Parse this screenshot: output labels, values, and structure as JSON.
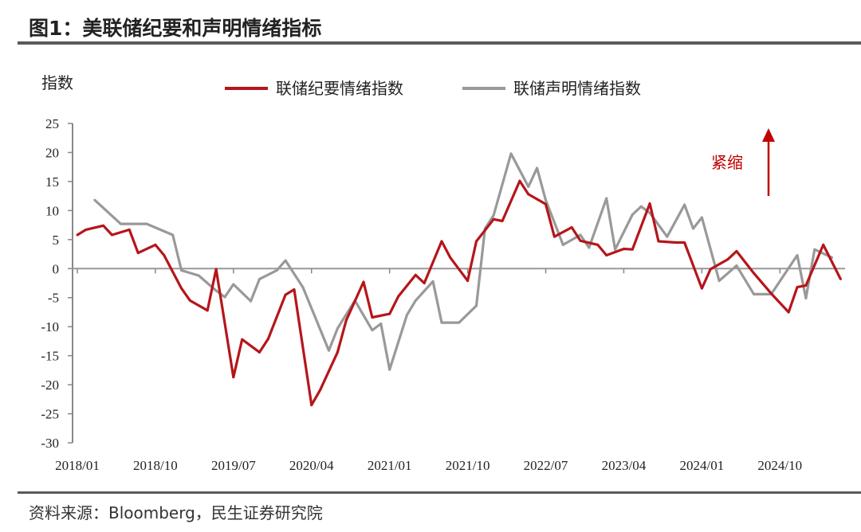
{
  "title": "图1：美联储纪要和声明情绪指标",
  "source": "资料来源：Bloomberg，民生证券研究院",
  "chart_data": {
    "type": "line",
    "ylabel": "指数",
    "ylim": [
      -30,
      25
    ],
    "yticks": [
      25,
      20,
      15,
      10,
      5,
      0,
      -5,
      -10,
      -15,
      -20,
      -25,
      -30
    ],
    "xticks": [
      "2018/01",
      "2018/10",
      "2019/07",
      "2020/04",
      "2021/01",
      "2021/10",
      "2022/07",
      "2023/04",
      "2024/01",
      "2024/10"
    ],
    "legend_position": "top",
    "grid": false,
    "annotation": {
      "text": "紧缩",
      "color": "#c00000",
      "arrow": "up"
    },
    "series": [
      {
        "name": "联储纪要情绪指数",
        "color": "#b5161b",
        "x": [
          "2018-01",
          "2018-02",
          "2018-04",
          "2018-05",
          "2018-07",
          "2018-08",
          "2018-10",
          "2018-11",
          "2019-01",
          "2019-02",
          "2019-04",
          "2019-05",
          "2019-07",
          "2019-08",
          "2019-10",
          "2019-11",
          "2020-01",
          "2020-02",
          "2020-04",
          "2020-05",
          "2020-07",
          "2020-08",
          "2020-10",
          "2020-11",
          "2021-01",
          "2021-02",
          "2021-04",
          "2021-05",
          "2021-07",
          "2021-08",
          "2021-10",
          "2021-11",
          "2022-01",
          "2022-02",
          "2022-04",
          "2022-05",
          "2022-07",
          "2022-08",
          "2022-10",
          "2022-11",
          "2023-01",
          "2023-02",
          "2023-04",
          "2023-05",
          "2023-07",
          "2023-08",
          "2023-10",
          "2023-11",
          "2024-01",
          "2024-02",
          "2024-04",
          "2024-05",
          "2024-07",
          "2024-09",
          "2024-11",
          "2024-12",
          "2025-01",
          "2025-03",
          "2025-05"
        ],
        "y": [
          5.8,
          6.7,
          7.4,
          5.8,
          6.7,
          2.7,
          4.1,
          2.3,
          -3.4,
          -5.5,
          -7.2,
          -0.1,
          -18.7,
          -12.2,
          -14.4,
          -12.1,
          -4.5,
          -3.6,
          -23.5,
          -20.9,
          -14.4,
          -8.9,
          -2.3,
          -8.4,
          -7.8,
          -4.8,
          -1.1,
          -2.5,
          4.7,
          1.9,
          -2.1,
          4.7,
          8.5,
          8.2,
          15.1,
          12.8,
          11.1,
          5.5,
          7.1,
          4.8,
          4.1,
          2.3,
          3.4,
          3.3,
          11.2,
          4.7,
          4.5,
          4.5,
          -3.4,
          -0.1,
          1.6,
          3.0,
          -0.8,
          -4.3,
          -7.5,
          -3.2,
          -2.9,
          4.1,
          -1.8
        ]
      },
      {
        "name": "联储声明情绪指数",
        "color": "#999999",
        "x": [
          "2018-03",
          "2018-06",
          "2018-09",
          "2018-12",
          "2019-01",
          "2019-03",
          "2019-05",
          "2019-06",
          "2019-07",
          "2019-09",
          "2019-10",
          "2019-12",
          "2020-01",
          "2020-03",
          "2020-06",
          "2020-07",
          "2020-09",
          "2020-11",
          "2020-12",
          "2021-01",
          "2021-03",
          "2021-04",
          "2021-06",
          "2021-07",
          "2021-09",
          "2021-11",
          "2021-12",
          "2022-01",
          "2022-03",
          "2022-05",
          "2022-06",
          "2022-07",
          "2022-09",
          "2022-11",
          "2022-12",
          "2023-02",
          "2023-03",
          "2023-05",
          "2023-06",
          "2023-07",
          "2023-09",
          "2023-11",
          "2023-12",
          "2024-01",
          "2024-03",
          "2024-05",
          "2024-07",
          "2024-09",
          "2024-12",
          "2025-01",
          "2025-02",
          "2025-04"
        ],
        "y": [
          11.8,
          7.7,
          7.7,
          5.8,
          -0.3,
          -1.2,
          -3.8,
          -4.9,
          -2.7,
          -5.6,
          -1.8,
          -0.3,
          1.4,
          -3.2,
          -14.1,
          -10.3,
          -5.5,
          -10.6,
          -9.5,
          -17.4,
          -8.0,
          -5.5,
          -2.2,
          -9.3,
          -9.3,
          -6.4,
          6.9,
          9.2,
          19.8,
          14.1,
          17.3,
          11.8,
          4.1,
          5.8,
          3.6,
          12.1,
          3.3,
          9.3,
          10.7,
          9.6,
          5.5,
          11.0,
          6.9,
          8.8,
          -2.1,
          0.5,
          -4.4,
          -4.4,
          2.3,
          -5.1,
          3.3,
          1.9
        ]
      }
    ]
  }
}
